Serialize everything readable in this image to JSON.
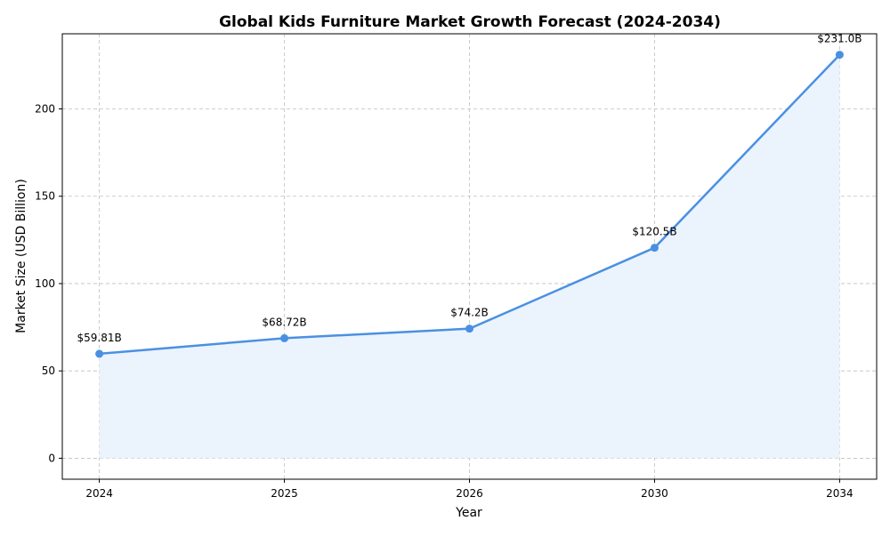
{
  "chart_data": {
    "type": "line",
    "title": "Global Kids Furniture Market Growth Forecast (2024-2034)",
    "xlabel": "Year",
    "ylabel": "Market Size (USD Billion)",
    "categories": [
      "2024",
      "2025",
      "2026",
      "2030",
      "2034"
    ],
    "values": [
      59.81,
      68.72,
      74.2,
      120.5,
      231.0
    ],
    "data_labels": [
      "$59.81B",
      "$68.72B",
      "$74.2B",
      "$120.5B",
      "$231.0B"
    ],
    "yticks": [
      0,
      50,
      100,
      150,
      200
    ],
    "ylim": [
      -12,
      243
    ],
    "grid": true,
    "area_fill": true,
    "colors": {
      "line": "#4a90e2",
      "fill": "#ebf3fd",
      "grid": "#c0c0c0"
    }
  }
}
